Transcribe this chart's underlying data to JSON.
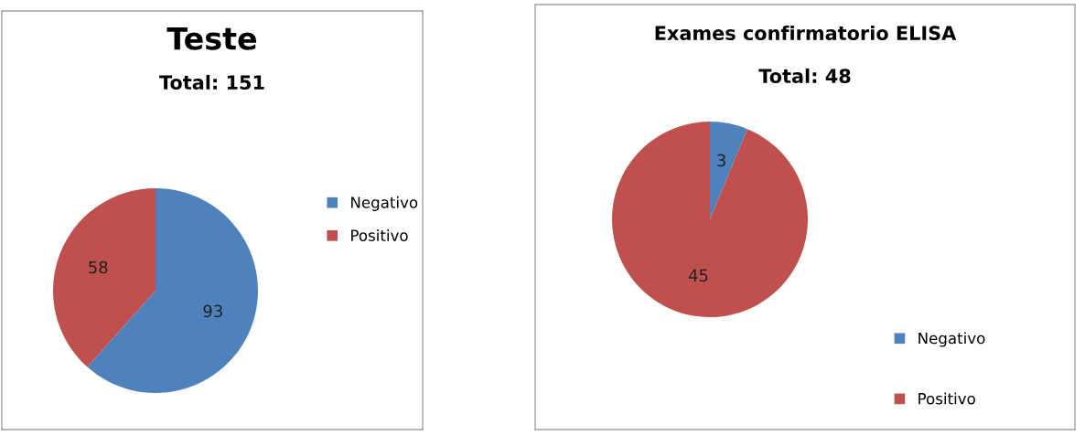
{
  "chart_data": [
    {
      "type": "pie",
      "title": "Teste",
      "subtitle": "Total: 151",
      "categories": [
        "Negativo",
        "Positivo"
      ],
      "values": [
        93,
        58
      ],
      "colors": [
        "#4f81bd",
        "#c0504d"
      ],
      "data_labels": true,
      "legend": "right"
    },
    {
      "type": "pie",
      "title": "Exames confirmatorio ELISA",
      "subtitle": "Total: 48",
      "categories": [
        "Negativo",
        "Positivo"
      ],
      "values": [
        3,
        45
      ],
      "colors": [
        "#4f81bd",
        "#c0504d"
      ],
      "data_labels": true,
      "legend": "bottom right"
    }
  ]
}
